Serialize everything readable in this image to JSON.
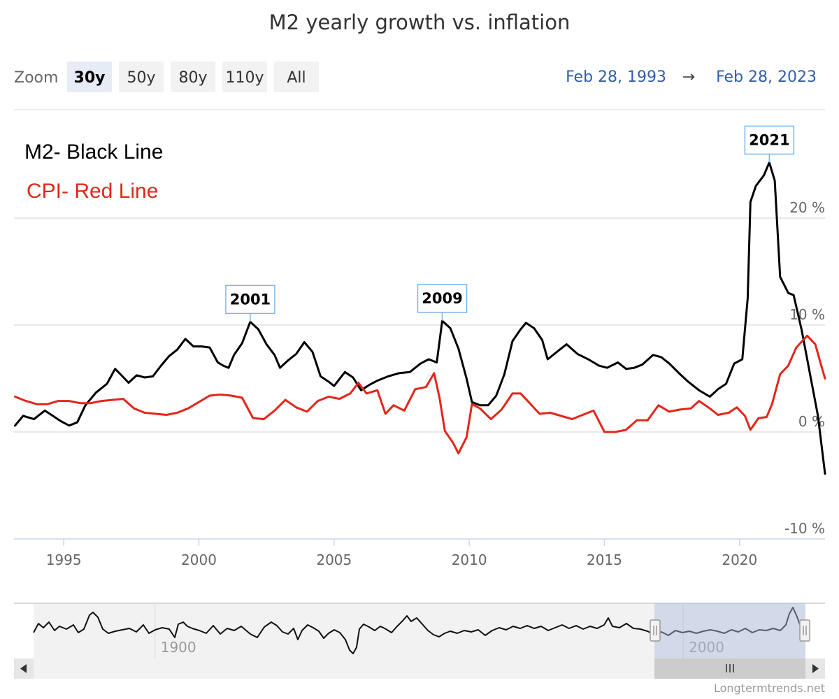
{
  "chart_data": {
    "type": "line",
    "title": "M2 yearly growth vs. inflation",
    "legend": [
      "M2- Black Line",
      "CPI- Red Line"
    ],
    "legend_placement": "top-left",
    "xlabel": "",
    "ylabel": "",
    "xlim": [
      1993.16,
      2023.16
    ],
    "ylim": [
      -10,
      26
    ],
    "x_ticks": [
      "1995",
      "2000",
      "2005",
      "2010",
      "2015",
      "2020"
    ],
    "y_ticks": [
      "-10 %",
      "0 %",
      "10 %",
      "20 %"
    ],
    "grid": true,
    "series": [
      {
        "color": "#000000",
        "points": [
          [
            1993.2,
            0.6
          ],
          [
            1993.5,
            1.5
          ],
          [
            1993.9,
            1.2
          ],
          [
            1994.3,
            2.0
          ],
          [
            1994.6,
            1.5
          ],
          [
            1994.9,
            1.0
          ],
          [
            1995.2,
            0.6
          ],
          [
            1995.5,
            0.9
          ],
          [
            1995.8,
            2.5
          ],
          [
            1996.2,
            3.7
          ],
          [
            1996.6,
            4.5
          ],
          [
            1996.9,
            5.9
          ],
          [
            1997.1,
            5.4
          ],
          [
            1997.4,
            4.6
          ],
          [
            1997.7,
            5.3
          ],
          [
            1998.0,
            5.1
          ],
          [
            1998.3,
            5.2
          ],
          [
            1998.6,
            6.2
          ],
          [
            1998.9,
            7.1
          ],
          [
            1999.2,
            7.7
          ],
          [
            1999.5,
            8.7
          ],
          [
            1999.8,
            8.0
          ],
          [
            2000.1,
            8.0
          ],
          [
            2000.4,
            7.9
          ],
          [
            2000.7,
            6.5
          ],
          [
            2000.9,
            6.2
          ],
          [
            2001.1,
            6.0
          ],
          [
            2001.3,
            7.2
          ],
          [
            2001.6,
            8.3
          ],
          [
            2001.9,
            10.3
          ],
          [
            2002.2,
            9.6
          ],
          [
            2002.5,
            8.2
          ],
          [
            2002.8,
            7.2
          ],
          [
            2003.0,
            6.0
          ],
          [
            2003.3,
            6.7
          ],
          [
            2003.6,
            7.3
          ],
          [
            2003.9,
            8.4
          ],
          [
            2004.2,
            7.5
          ],
          [
            2004.5,
            5.2
          ],
          [
            2004.8,
            4.7
          ],
          [
            2005.0,
            4.3
          ],
          [
            2005.4,
            5.6
          ],
          [
            2005.7,
            5.1
          ],
          [
            2006.0,
            3.9
          ],
          [
            2006.3,
            4.4
          ],
          [
            2006.6,
            4.8
          ],
          [
            2007.0,
            5.2
          ],
          [
            2007.4,
            5.5
          ],
          [
            2007.8,
            5.6
          ],
          [
            2008.2,
            6.4
          ],
          [
            2008.5,
            6.8
          ],
          [
            2008.8,
            6.5
          ],
          [
            2009.0,
            10.4
          ],
          [
            2009.3,
            9.7
          ],
          [
            2009.6,
            7.8
          ],
          [
            2009.9,
            5.0
          ],
          [
            2010.1,
            2.8
          ],
          [
            2010.4,
            2.5
          ],
          [
            2010.7,
            2.5
          ],
          [
            2011.0,
            3.4
          ],
          [
            2011.3,
            5.4
          ],
          [
            2011.6,
            8.5
          ],
          [
            2011.9,
            9.6
          ],
          [
            2012.1,
            10.2
          ],
          [
            2012.4,
            9.7
          ],
          [
            2012.7,
            8.6
          ],
          [
            2012.9,
            6.8
          ],
          [
            2013.3,
            7.6
          ],
          [
            2013.6,
            8.2
          ],
          [
            2014.0,
            7.3
          ],
          [
            2014.4,
            6.8
          ],
          [
            2014.8,
            6.2
          ],
          [
            2015.1,
            6.0
          ],
          [
            2015.5,
            6.5
          ],
          [
            2015.8,
            5.9
          ],
          [
            2016.1,
            6.0
          ],
          [
            2016.4,
            6.3
          ],
          [
            2016.8,
            7.2
          ],
          [
            2017.1,
            7.0
          ],
          [
            2017.4,
            6.4
          ],
          [
            2017.8,
            5.4
          ],
          [
            2018.1,
            4.7
          ],
          [
            2018.5,
            3.9
          ],
          [
            2018.9,
            3.3
          ],
          [
            2019.2,
            4.0
          ],
          [
            2019.5,
            4.5
          ],
          [
            2019.8,
            6.4
          ],
          [
            2020.1,
            6.8
          ],
          [
            2020.3,
            12.5
          ],
          [
            2020.4,
            21.5
          ],
          [
            2020.6,
            23.0
          ],
          [
            2020.9,
            24.0
          ],
          [
            2021.1,
            25.2
          ],
          [
            2021.3,
            23.5
          ],
          [
            2021.5,
            14.5
          ],
          [
            2021.8,
            13.0
          ],
          [
            2022.0,
            12.8
          ],
          [
            2022.3,
            9.5
          ],
          [
            2022.6,
            5.5
          ],
          [
            2022.9,
            1.5
          ],
          [
            2023.16,
            -3.9
          ]
        ]
      },
      {
        "color": "#e3261a",
        "points": [
          [
            1993.2,
            3.3
          ],
          [
            1993.6,
            2.9
          ],
          [
            1994.0,
            2.6
          ],
          [
            1994.4,
            2.6
          ],
          [
            1994.8,
            2.9
          ],
          [
            1995.2,
            2.9
          ],
          [
            1995.6,
            2.7
          ],
          [
            1996.0,
            2.7
          ],
          [
            1996.4,
            2.9
          ],
          [
            1996.8,
            3.0
          ],
          [
            1997.2,
            3.1
          ],
          [
            1997.6,
            2.2
          ],
          [
            1998.0,
            1.8
          ],
          [
            1998.4,
            1.7
          ],
          [
            1998.8,
            1.6
          ],
          [
            1999.2,
            1.8
          ],
          [
            1999.6,
            2.2
          ],
          [
            2000.0,
            2.8
          ],
          [
            2000.4,
            3.4
          ],
          [
            2000.8,
            3.5
          ],
          [
            2001.2,
            3.4
          ],
          [
            2001.6,
            3.2
          ],
          [
            2002.0,
            1.3
          ],
          [
            2002.4,
            1.2
          ],
          [
            2002.8,
            2.0
          ],
          [
            2003.2,
            3.0
          ],
          [
            2003.6,
            2.3
          ],
          [
            2004.0,
            1.9
          ],
          [
            2004.4,
            2.9
          ],
          [
            2004.8,
            3.3
          ],
          [
            2005.2,
            3.1
          ],
          [
            2005.6,
            3.6
          ],
          [
            2005.9,
            4.6
          ],
          [
            2006.2,
            3.6
          ],
          [
            2006.6,
            3.9
          ],
          [
            2006.9,
            1.7
          ],
          [
            2007.2,
            2.5
          ],
          [
            2007.6,
            2.0
          ],
          [
            2008.0,
            4.0
          ],
          [
            2008.4,
            4.2
          ],
          [
            2008.7,
            5.5
          ],
          [
            2008.9,
            3.2
          ],
          [
            2009.1,
            0.1
          ],
          [
            2009.4,
            -1.0
          ],
          [
            2009.6,
            -2.0
          ],
          [
            2009.9,
            -0.5
          ],
          [
            2010.1,
            2.6
          ],
          [
            2010.4,
            2.2
          ],
          [
            2010.8,
            1.2
          ],
          [
            2011.2,
            2.1
          ],
          [
            2011.6,
            3.6
          ],
          [
            2011.9,
            3.6
          ],
          [
            2012.2,
            2.8
          ],
          [
            2012.6,
            1.7
          ],
          [
            2013.0,
            1.8
          ],
          [
            2013.4,
            1.5
          ],
          [
            2013.8,
            1.2
          ],
          [
            2014.2,
            1.6
          ],
          [
            2014.6,
            2.0
          ],
          [
            2015.0,
            0.0
          ],
          [
            2015.4,
            0.0
          ],
          [
            2015.8,
            0.2
          ],
          [
            2016.2,
            1.1
          ],
          [
            2016.6,
            1.1
          ],
          [
            2017.0,
            2.5
          ],
          [
            2017.4,
            1.9
          ],
          [
            2017.8,
            2.1
          ],
          [
            2018.2,
            2.2
          ],
          [
            2018.5,
            2.9
          ],
          [
            2018.9,
            2.2
          ],
          [
            2019.2,
            1.6
          ],
          [
            2019.6,
            1.8
          ],
          [
            2019.9,
            2.3
          ],
          [
            2020.2,
            1.5
          ],
          [
            2020.4,
            0.2
          ],
          [
            2020.7,
            1.3
          ],
          [
            2021.0,
            1.4
          ],
          [
            2021.2,
            2.6
          ],
          [
            2021.5,
            5.4
          ],
          [
            2021.8,
            6.2
          ],
          [
            2022.1,
            7.9
          ],
          [
            2022.5,
            9.0
          ],
          [
            2022.8,
            8.2
          ],
          [
            2023.0,
            6.4
          ],
          [
            2023.16,
            5.0
          ]
        ]
      }
    ],
    "annotations": [
      {
        "label": "2001",
        "x": 2001.9,
        "y": 10.3
      },
      {
        "label": "2009",
        "x": 2009.0,
        "y": 10.4
      },
      {
        "label": "2021",
        "x": 2021.1,
        "y": 25.2
      }
    ],
    "navigator": {
      "x_ticks": [
        "1900",
        "2000"
      ],
      "selected_range": [
        1993.16,
        2023.16
      ]
    }
  },
  "range_selector": {
    "zoom_label": "Zoom",
    "buttons": [
      "30y",
      "50y",
      "80y",
      "110y",
      "All"
    ],
    "active": "30y"
  },
  "date_range": {
    "from": "Feb 28, 1993",
    "arrow": "→",
    "to": "Feb 28, 2023"
  },
  "credit": "Longtermtrends.net"
}
